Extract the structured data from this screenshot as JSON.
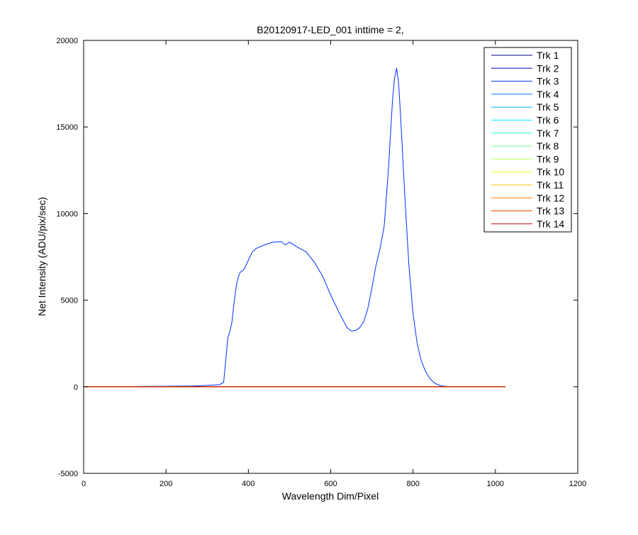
{
  "chart_data": {
    "type": "line",
    "title": "B20120917-LED_001 inttime = 2,",
    "xlabel": "Wavelength Dim/Pixel",
    "ylabel": "Net Intensity (ADU/pix/sec)",
    "xlim": [
      0,
      1200
    ],
    "ylim": [
      -5000,
      20000
    ],
    "xticks": [
      0,
      200,
      400,
      600,
      800,
      1000,
      1200
    ],
    "yticks": [
      -5000,
      0,
      5000,
      10000,
      15000,
      20000
    ],
    "grid": false,
    "legend_position": "top-right",
    "series": [
      {
        "name": "Trk 1",
        "color": "#00008f",
        "x": [
          1,
          1024
        ],
        "y": [
          0,
          0
        ]
      },
      {
        "name": "Trk 2",
        "color": "#0000d0",
        "x": [
          1,
          1024
        ],
        "y": [
          0,
          0
        ]
      },
      {
        "name": "Trk 3",
        "color": "#0030ff",
        "x": [
          1,
          100,
          150,
          200,
          260,
          300,
          330,
          340,
          345,
          350,
          355,
          360,
          365,
          370,
          375,
          380,
          390,
          400,
          410,
          420,
          440,
          460,
          480,
          490,
          500,
          510,
          520,
          540,
          560,
          580,
          600,
          620,
          640,
          650,
          660,
          670,
          680,
          690,
          700,
          710,
          720,
          730,
          740,
          745,
          750,
          755,
          760,
          765,
          770,
          780,
          790,
          800,
          810,
          820,
          830,
          840,
          850,
          860,
          870,
          880,
          890,
          1024
        ],
        "y": [
          0,
          0,
          20,
          30,
          40,
          80,
          120,
          250,
          1500,
          2800,
          3200,
          3700,
          4800,
          5700,
          6300,
          6600,
          6800,
          7300,
          7800,
          8000,
          8200,
          8350,
          8380,
          8200,
          8350,
          8200,
          8050,
          7800,
          7200,
          6400,
          5300,
          4300,
          3400,
          3220,
          3250,
          3400,
          3750,
          4500,
          5700,
          7000,
          8000,
          9300,
          12500,
          14500,
          16500,
          17800,
          18400,
          17500,
          15500,
          11000,
          7000,
          4200,
          2500,
          1500,
          900,
          500,
          250,
          120,
          50,
          20,
          0,
          0
        ]
      },
      {
        "name": "Trk 4",
        "color": "#0070ff",
        "x": [
          1,
          1024
        ],
        "y": [
          0,
          0
        ]
      },
      {
        "name": "Trk 5",
        "color": "#00b0ff",
        "x": [
          1,
          1024
        ],
        "y": [
          0,
          0
        ]
      },
      {
        "name": "Trk 6",
        "color": "#00f0ff",
        "x": [
          1,
          1024
        ],
        "y": [
          0,
          0
        ]
      },
      {
        "name": "Trk 7",
        "color": "#30ffd0",
        "x": [
          1,
          1024
        ],
        "y": [
          0,
          0
        ]
      },
      {
        "name": "Trk 8",
        "color": "#70ff90",
        "x": [
          1,
          1024
        ],
        "y": [
          0,
          0
        ]
      },
      {
        "name": "Trk 9",
        "color": "#b0ff50",
        "x": [
          1,
          1024
        ],
        "y": [
          0,
          0
        ]
      },
      {
        "name": "Trk 10",
        "color": "#f0ff10",
        "x": [
          1,
          1024
        ],
        "y": [
          0,
          0
        ]
      },
      {
        "name": "Trk 11",
        "color": "#ffc000",
        "x": [
          1,
          1024
        ],
        "y": [
          0,
          0
        ]
      },
      {
        "name": "Trk 12",
        "color": "#ff8000",
        "x": [
          1,
          1024
        ],
        "y": [
          0,
          0
        ]
      },
      {
        "name": "Trk 13",
        "color": "#ff4000",
        "x": [
          1,
          1024
        ],
        "y": [
          0,
          0
        ]
      },
      {
        "name": "Trk 14",
        "color": "#c00000",
        "x": [
          1,
          1024
        ],
        "y": [
          0,
          0
        ]
      }
    ]
  }
}
